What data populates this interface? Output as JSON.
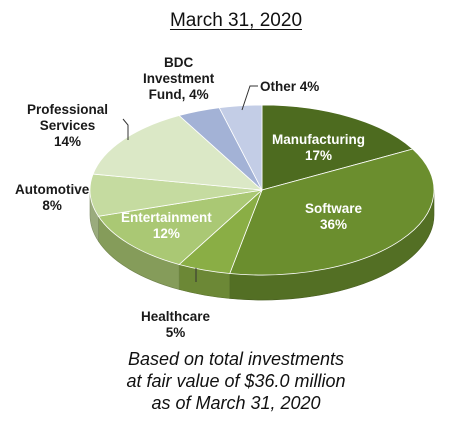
{
  "chart_data": {
    "type": "pie",
    "title": "March 31, 2020",
    "slices": [
      {
        "label": "Manufacturing",
        "value": 17,
        "display": "17%",
        "color": "#4d6b1f"
      },
      {
        "label": "Software",
        "value": 36,
        "display": "36%",
        "color": "#6b8e2e"
      },
      {
        "label": "Healthcare",
        "value": 5,
        "display": "5%",
        "color": "#8aae45"
      },
      {
        "label": "Entertainment",
        "value": 12,
        "display": "12%",
        "color": "#aac874"
      },
      {
        "label": "Automotive",
        "value": 8,
        "display": "8%",
        "color": "#c5dba0"
      },
      {
        "label": "Professional Services",
        "value": 14,
        "display": "14%",
        "color": "#dbe8c6"
      },
      {
        "label": "BDC Investment Fund",
        "value": 4,
        "display": "4%",
        "color": "#a3b2d6"
      },
      {
        "label": "Other",
        "value": 4,
        "display": "4%",
        "color": "#c3cde6"
      }
    ],
    "labels": {
      "manufacturing": {
        "line1": "Manufacturing",
        "line2": "17%"
      },
      "software": {
        "line1": "Software",
        "line2": "36%"
      },
      "healthcare": {
        "line1": "Healthcare",
        "line2": "5%"
      },
      "entertainment": {
        "line1": "Entertainment",
        "line2": "12%"
      },
      "automotive": {
        "line1": "Automotive",
        "line2": "8%"
      },
      "professional": {
        "line1": "Professional",
        "line2": "Services",
        "line3": "14%"
      },
      "bdc": {
        "line1": "BDC",
        "line2": "Investment",
        "line3": "Fund, 4%"
      },
      "other": {
        "line1": "Other 4%"
      }
    },
    "caption": {
      "line1": "Based on total investments",
      "line2": "at fair value of $36.0 million",
      "line3": "as of March 31, 2020"
    }
  }
}
